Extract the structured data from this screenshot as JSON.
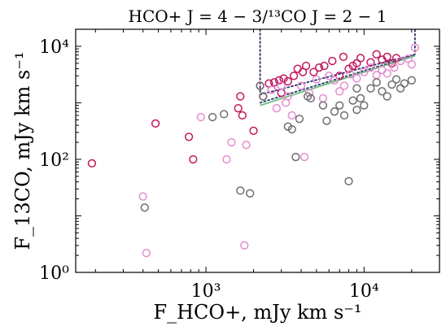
{
  "chart_data": {
    "type": "scatter",
    "title": "HCO+ J = 4 − 3/¹³CO J = 2 − 1",
    "xlabel": "F_HCO+, mJy km s⁻¹",
    "ylabel": "F_13CO, mJy km s⁻¹",
    "xscale": "log",
    "yscale": "log",
    "xlim": [
      150,
      30000
    ],
    "ylim": [
      1,
      20000
    ],
    "xticks": [
      {
        "value": 1000,
        "label": "10³"
      },
      {
        "value": 10000,
        "label": "10⁴"
      }
    ],
    "yticks": [
      {
        "value": 1,
        "label": "10⁰"
      },
      {
        "value": 100,
        "label": "10²"
      },
      {
        "value": 10000,
        "label": "10⁴"
      }
    ],
    "grid": false,
    "marker": "open-circle",
    "series": [
      {
        "color": "#c2185b",
        "points": [
          [
            190,
            85
          ],
          [
            480,
            430
          ],
          [
            780,
            250
          ],
          [
            830,
            100
          ],
          [
            1600,
            800
          ],
          [
            1700,
            600
          ],
          [
            2000,
            320
          ],
          [
            1650,
            1300
          ],
          [
            2200,
            2000
          ],
          [
            2500,
            2200
          ],
          [
            2700,
            2300
          ],
          [
            2900,
            2500
          ],
          [
            3100,
            2700
          ],
          [
            3300,
            2400
          ],
          [
            3600,
            3000
          ],
          [
            3800,
            4000
          ],
          [
            4100,
            3500
          ],
          [
            4300,
            4500
          ],
          [
            4800,
            3500
          ],
          [
            5200,
            4200
          ],
          [
            5600,
            4500
          ],
          [
            6300,
            5500
          ],
          [
            7000,
            3000
          ],
          [
            7400,
            6500
          ],
          [
            8000,
            4000
          ],
          [
            8500,
            4500
          ],
          [
            9000,
            5000
          ],
          [
            9500,
            6200
          ],
          [
            11000,
            5200
          ],
          [
            12000,
            7200
          ],
          [
            13000,
            5800
          ],
          [
            14000,
            6500
          ],
          [
            15000,
            5000
          ],
          [
            16000,
            6200
          ],
          [
            2300,
            1300
          ],
          [
            2600,
            1700
          ],
          [
            3000,
            1500
          ]
        ]
      },
      {
        "color": "#e58ccf",
        "points": [
          [
            400,
            22
          ],
          [
            420,
            2.2
          ],
          [
            930,
            560
          ],
          [
            1350,
            100
          ],
          [
            1450,
            200
          ],
          [
            1750,
            3
          ],
          [
            1800,
            180
          ],
          [
            2600,
            1700
          ],
          [
            2800,
            800
          ],
          [
            3200,
            1000
          ],
          [
            3500,
            600
          ],
          [
            4000,
            2000
          ],
          [
            4200,
            110
          ],
          [
            4500,
            1500
          ],
          [
            5000,
            2600
          ],
          [
            5500,
            1200
          ],
          [
            6000,
            3000
          ],
          [
            6500,
            2500
          ],
          [
            7000,
            1600
          ],
          [
            7500,
            2000
          ],
          [
            8200,
            3200
          ],
          [
            9000,
            2700
          ],
          [
            10000,
            3500
          ],
          [
            11000,
            4200
          ],
          [
            12000,
            3100
          ],
          [
            13000,
            3800
          ],
          [
            14000,
            3300
          ],
          [
            15500,
            4200
          ],
          [
            17000,
            5500
          ],
          [
            19000,
            6000
          ],
          [
            21000,
            9500
          ],
          [
            20000,
            4800
          ],
          [
            3000,
            2000
          ],
          [
            3300,
            1300
          ]
        ]
      },
      {
        "color": "#6e6e6e",
        "points": [
          [
            410,
            14
          ],
          [
            1100,
            560
          ],
          [
            1300,
            630
          ],
          [
            1650,
            28
          ],
          [
            1900,
            25
          ],
          [
            2200,
            2000
          ],
          [
            2300,
            1300
          ],
          [
            3300,
            380
          ],
          [
            3500,
            340
          ],
          [
            3700,
            110
          ],
          [
            3900,
            520
          ],
          [
            4400,
            1300
          ],
          [
            4600,
            1200
          ],
          [
            5500,
            900
          ],
          [
            5800,
            480
          ],
          [
            6500,
            700
          ],
          [
            7000,
            900
          ],
          [
            7500,
            600
          ],
          [
            8000,
            41
          ],
          [
            8500,
            1100
          ],
          [
            9000,
            750
          ],
          [
            9500,
            1200
          ],
          [
            10000,
            900
          ],
          [
            11000,
            1800
          ],
          [
            12000,
            2300
          ],
          [
            13000,
            1600
          ],
          [
            14000,
            1300
          ],
          [
            15000,
            2100
          ],
          [
            16000,
            2600
          ],
          [
            17000,
            1800
          ],
          [
            18000,
            2200
          ],
          [
            20000,
            2500
          ],
          [
            9000,
            1800
          ]
        ]
      }
    ],
    "lines": [
      {
        "style": "dotted",
        "color": "#2b2d6e",
        "points": [
          [
            2200,
            20000
          ],
          [
            2200,
            1400
          ],
          [
            21000,
            7200
          ],
          [
            21000,
            20000
          ]
        ]
      },
      {
        "style": "dotted",
        "color": "#1f3f6e",
        "points": [
          [
            2200,
            1000
          ],
          [
            21000,
            7000
          ]
        ]
      },
      {
        "style": "solid",
        "color": "#6dbb7a",
        "points": [
          [
            2200,
            900
          ],
          [
            21000,
            6800
          ]
        ]
      }
    ]
  }
}
